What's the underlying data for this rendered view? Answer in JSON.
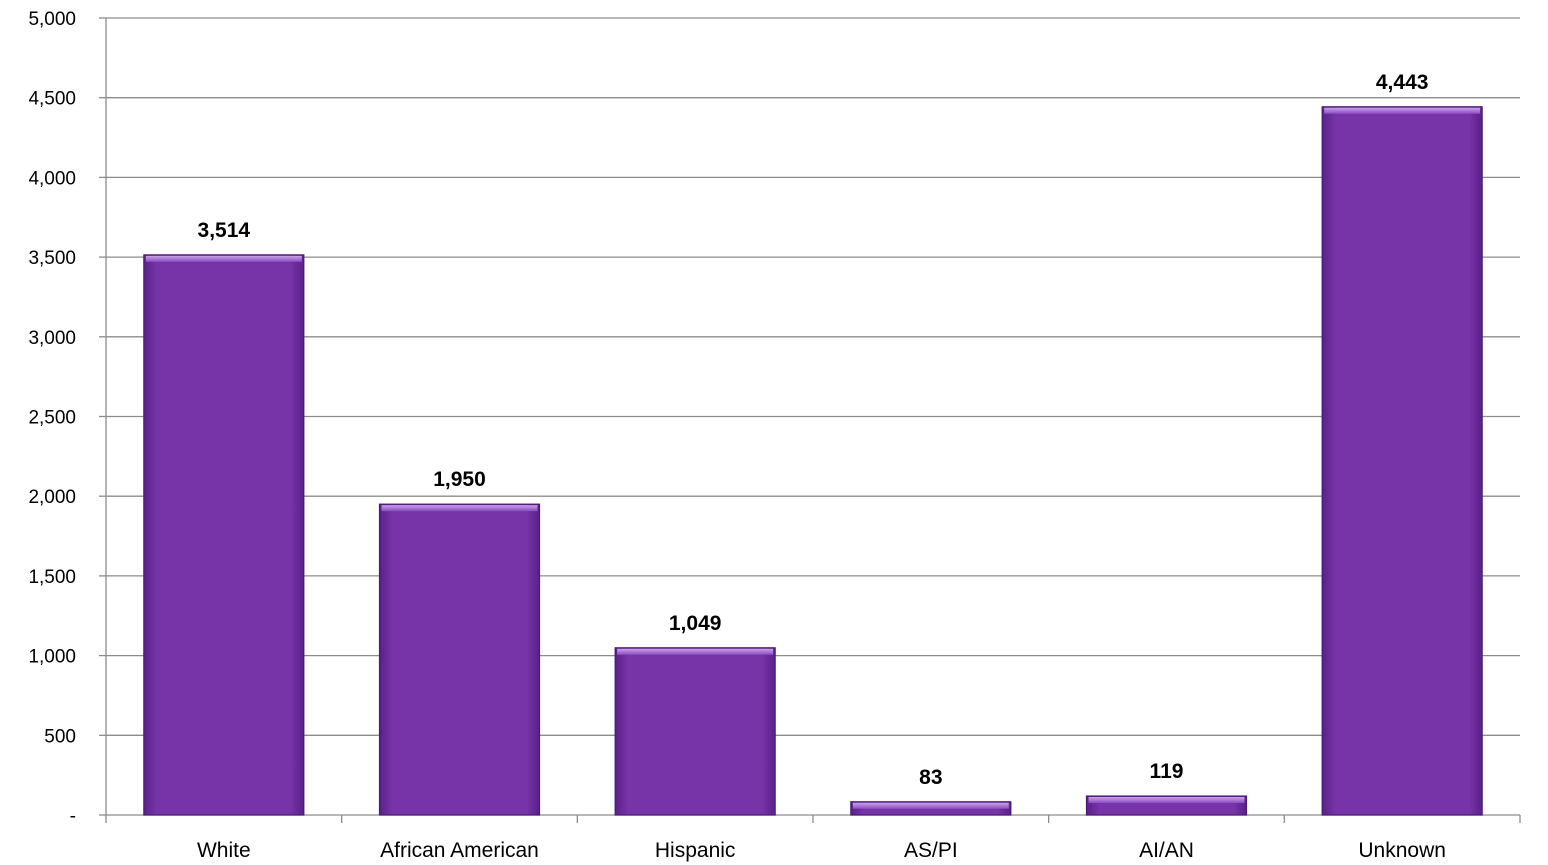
{
  "chart_data": {
    "type": "bar",
    "categories": [
      "White",
      "African American",
      "Hispanic",
      "AS/PI",
      "AI/AN",
      "Unknown"
    ],
    "values": [
      3514,
      1950,
      1049,
      83,
      119,
      4443
    ],
    "value_labels": [
      "3,514",
      "1,950",
      "1,049",
      "83",
      "119",
      "4,443"
    ],
    "title": "",
    "xlabel": "",
    "ylabel": "",
    "ylim": [
      0,
      5000
    ],
    "yticks": [
      0,
      500,
      1000,
      1500,
      2000,
      2500,
      3000,
      3500,
      4000,
      4500,
      5000
    ],
    "ytick_labels": [
      "-",
      "500",
      "1,000",
      "1,500",
      "2,000",
      "2,500",
      "3,000",
      "3,500",
      "4,000",
      "4,500",
      "5,000"
    ],
    "grid": true,
    "legend": "none",
    "bar_color": "#7030A0"
  }
}
